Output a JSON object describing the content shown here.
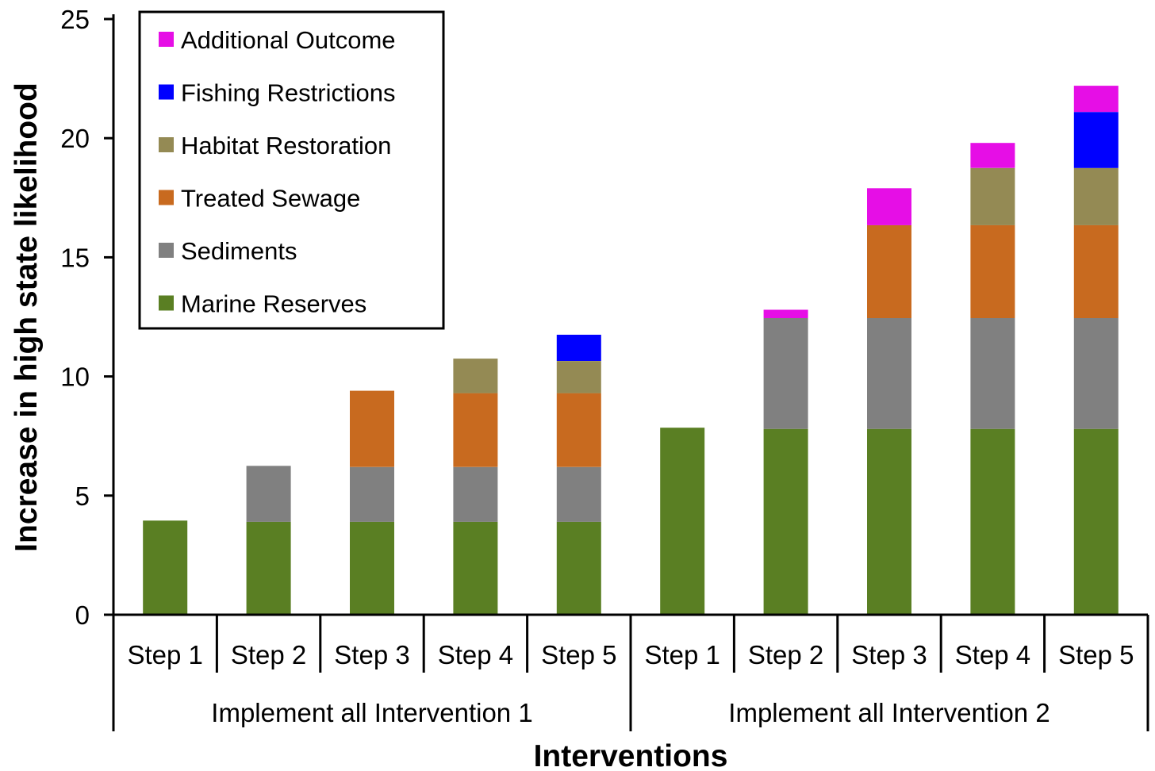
{
  "chart_data": {
    "type": "bar",
    "stacked": true,
    "xlabel": "Interventions",
    "ylabel": "Increase in high state likelihood",
    "ylim": [
      0,
      25
    ],
    "yticks": [
      0,
      5,
      10,
      15,
      20,
      25
    ],
    "groups": [
      {
        "label": "Implement all Intervention 1",
        "categories": [
          "Step 1",
          "Step 2",
          "Step 3",
          "Step 4",
          "Step 5"
        ]
      },
      {
        "label": "Implement all Intervention 2",
        "categories": [
          "Step 1",
          "Step 2",
          "Step 3",
          "Step 4",
          "Step 5"
        ]
      }
    ],
    "legend_position": "top-left",
    "series": [
      {
        "name": "Marine Reserves",
        "color": "#5a7f23",
        "values": [
          3.95,
          3.9,
          3.9,
          3.9,
          3.9,
          7.85,
          7.8,
          7.8,
          7.8,
          7.8
        ]
      },
      {
        "name": "Sediments",
        "color": "#808080",
        "values": [
          0,
          2.35,
          2.3,
          2.3,
          2.3,
          0,
          4.65,
          4.65,
          4.65,
          4.65
        ]
      },
      {
        "name": "Treated Sewage",
        "color": "#c86a1f",
        "values": [
          0,
          0,
          3.2,
          3.1,
          3.1,
          0,
          0,
          3.9,
          3.9,
          3.9
        ]
      },
      {
        "name": "Habitat Restoration",
        "color": "#948a54",
        "values": [
          0,
          0,
          0,
          1.45,
          1.35,
          0,
          0,
          0,
          2.4,
          2.4
        ]
      },
      {
        "name": "Fishing Restrictions",
        "color": "#0000ff",
        "values": [
          0,
          0,
          0,
          0,
          1.1,
          0,
          0,
          0,
          0,
          2.35
        ]
      },
      {
        "name": "Additional Outcome",
        "color": "#e60ee6",
        "values": [
          0,
          0,
          0,
          0,
          0,
          0,
          0.35,
          1.55,
          1.05,
          1.1
        ]
      }
    ]
  }
}
